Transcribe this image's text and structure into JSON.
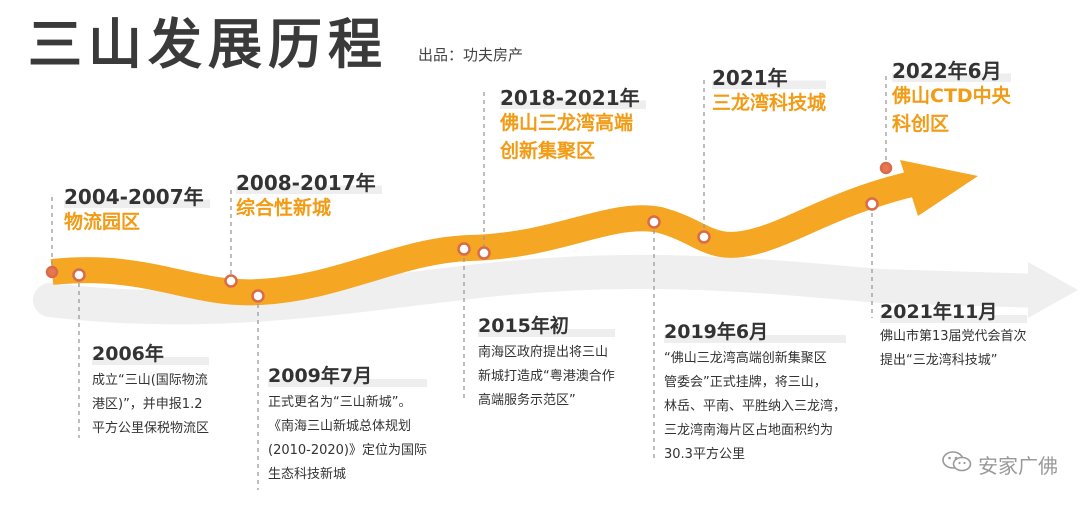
{
  "header": {
    "title": "三山发展历程",
    "subtitle": "出品：功夫房产"
  },
  "top_milestones": [
    {
      "year": "2004-2007年",
      "name": "物流园区"
    },
    {
      "year": "2008-2017年",
      "name": "综合性新城"
    },
    {
      "year": "2018-2021年",
      "name": "佛山三龙湾高端\n创新集聚区"
    },
    {
      "year": "2021年",
      "name": "三龙湾科技城"
    },
    {
      "year": "2022年6月",
      "name": "佛山CTD中央\n科创区"
    }
  ],
  "bottom_events": [
    {
      "date": "2006年",
      "desc": "成立“三山(国际物流\n港区)”，并申报1.2\n平方公里保税物流区"
    },
    {
      "date": "2009年7月",
      "desc": "正式更名为“三山新城”。\n《南海三山新城总体规划\n(2010-2020)》定位为国际\n生态科技新城"
    },
    {
      "date": "2015年初",
      "desc": "南海区政府提出将三山\n新城打造成“粤港澳合作\n高端服务示范区”"
    },
    {
      "date": "2019年6月",
      "desc": "“佛山三龙湾高端创新集聚区\n管委会”正式挂牌，将三山，\n林岳、平南、平胜纳入三龙湾，\n三龙湾南海片区占地面积约为\n30.3平方公里"
    },
    {
      "date": "2021年11月",
      "desc": "佛山市第13届党代会首次\n提出“三龙湾科技城”"
    }
  ],
  "watermark": {
    "icon": "wechat-icon",
    "text": "安家广佛"
  },
  "colors": {
    "accent": "#f29b15",
    "title": "#3a3a3a",
    "text": "#333333",
    "shadow": "#efefef"
  }
}
